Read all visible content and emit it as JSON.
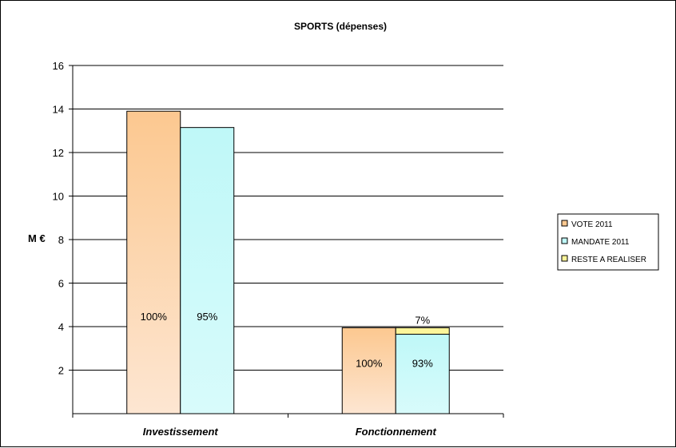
{
  "chart_data": {
    "type": "bar",
    "title": "SPORTS (dépenses)",
    "ylabel": "M €",
    "xlabel": "",
    "ylim": [
      0,
      16
    ],
    "yticks": [
      "2",
      "4",
      "6",
      "8",
      "10",
      "12",
      "14",
      "16"
    ],
    "categories": [
      "Investissement",
      "Fonctionnement"
    ],
    "series": [
      {
        "name": "VOTE 2011",
        "values": [
          13.9,
          3.95
        ],
        "labels": [
          "100%",
          "100%"
        ],
        "color": "#fcc890"
      },
      {
        "name": "MANDATE 2011",
        "values": [
          13.15,
          3.65
        ],
        "labels": [
          "95%",
          "93%"
        ],
        "color": "#bff8f8"
      },
      {
        "name": "RESTE A REALISER",
        "values": [
          0,
          0.3
        ],
        "labels": [
          "",
          "7%"
        ],
        "color": "#fcf59a"
      }
    ],
    "grid": true,
    "legend_position": "right"
  }
}
